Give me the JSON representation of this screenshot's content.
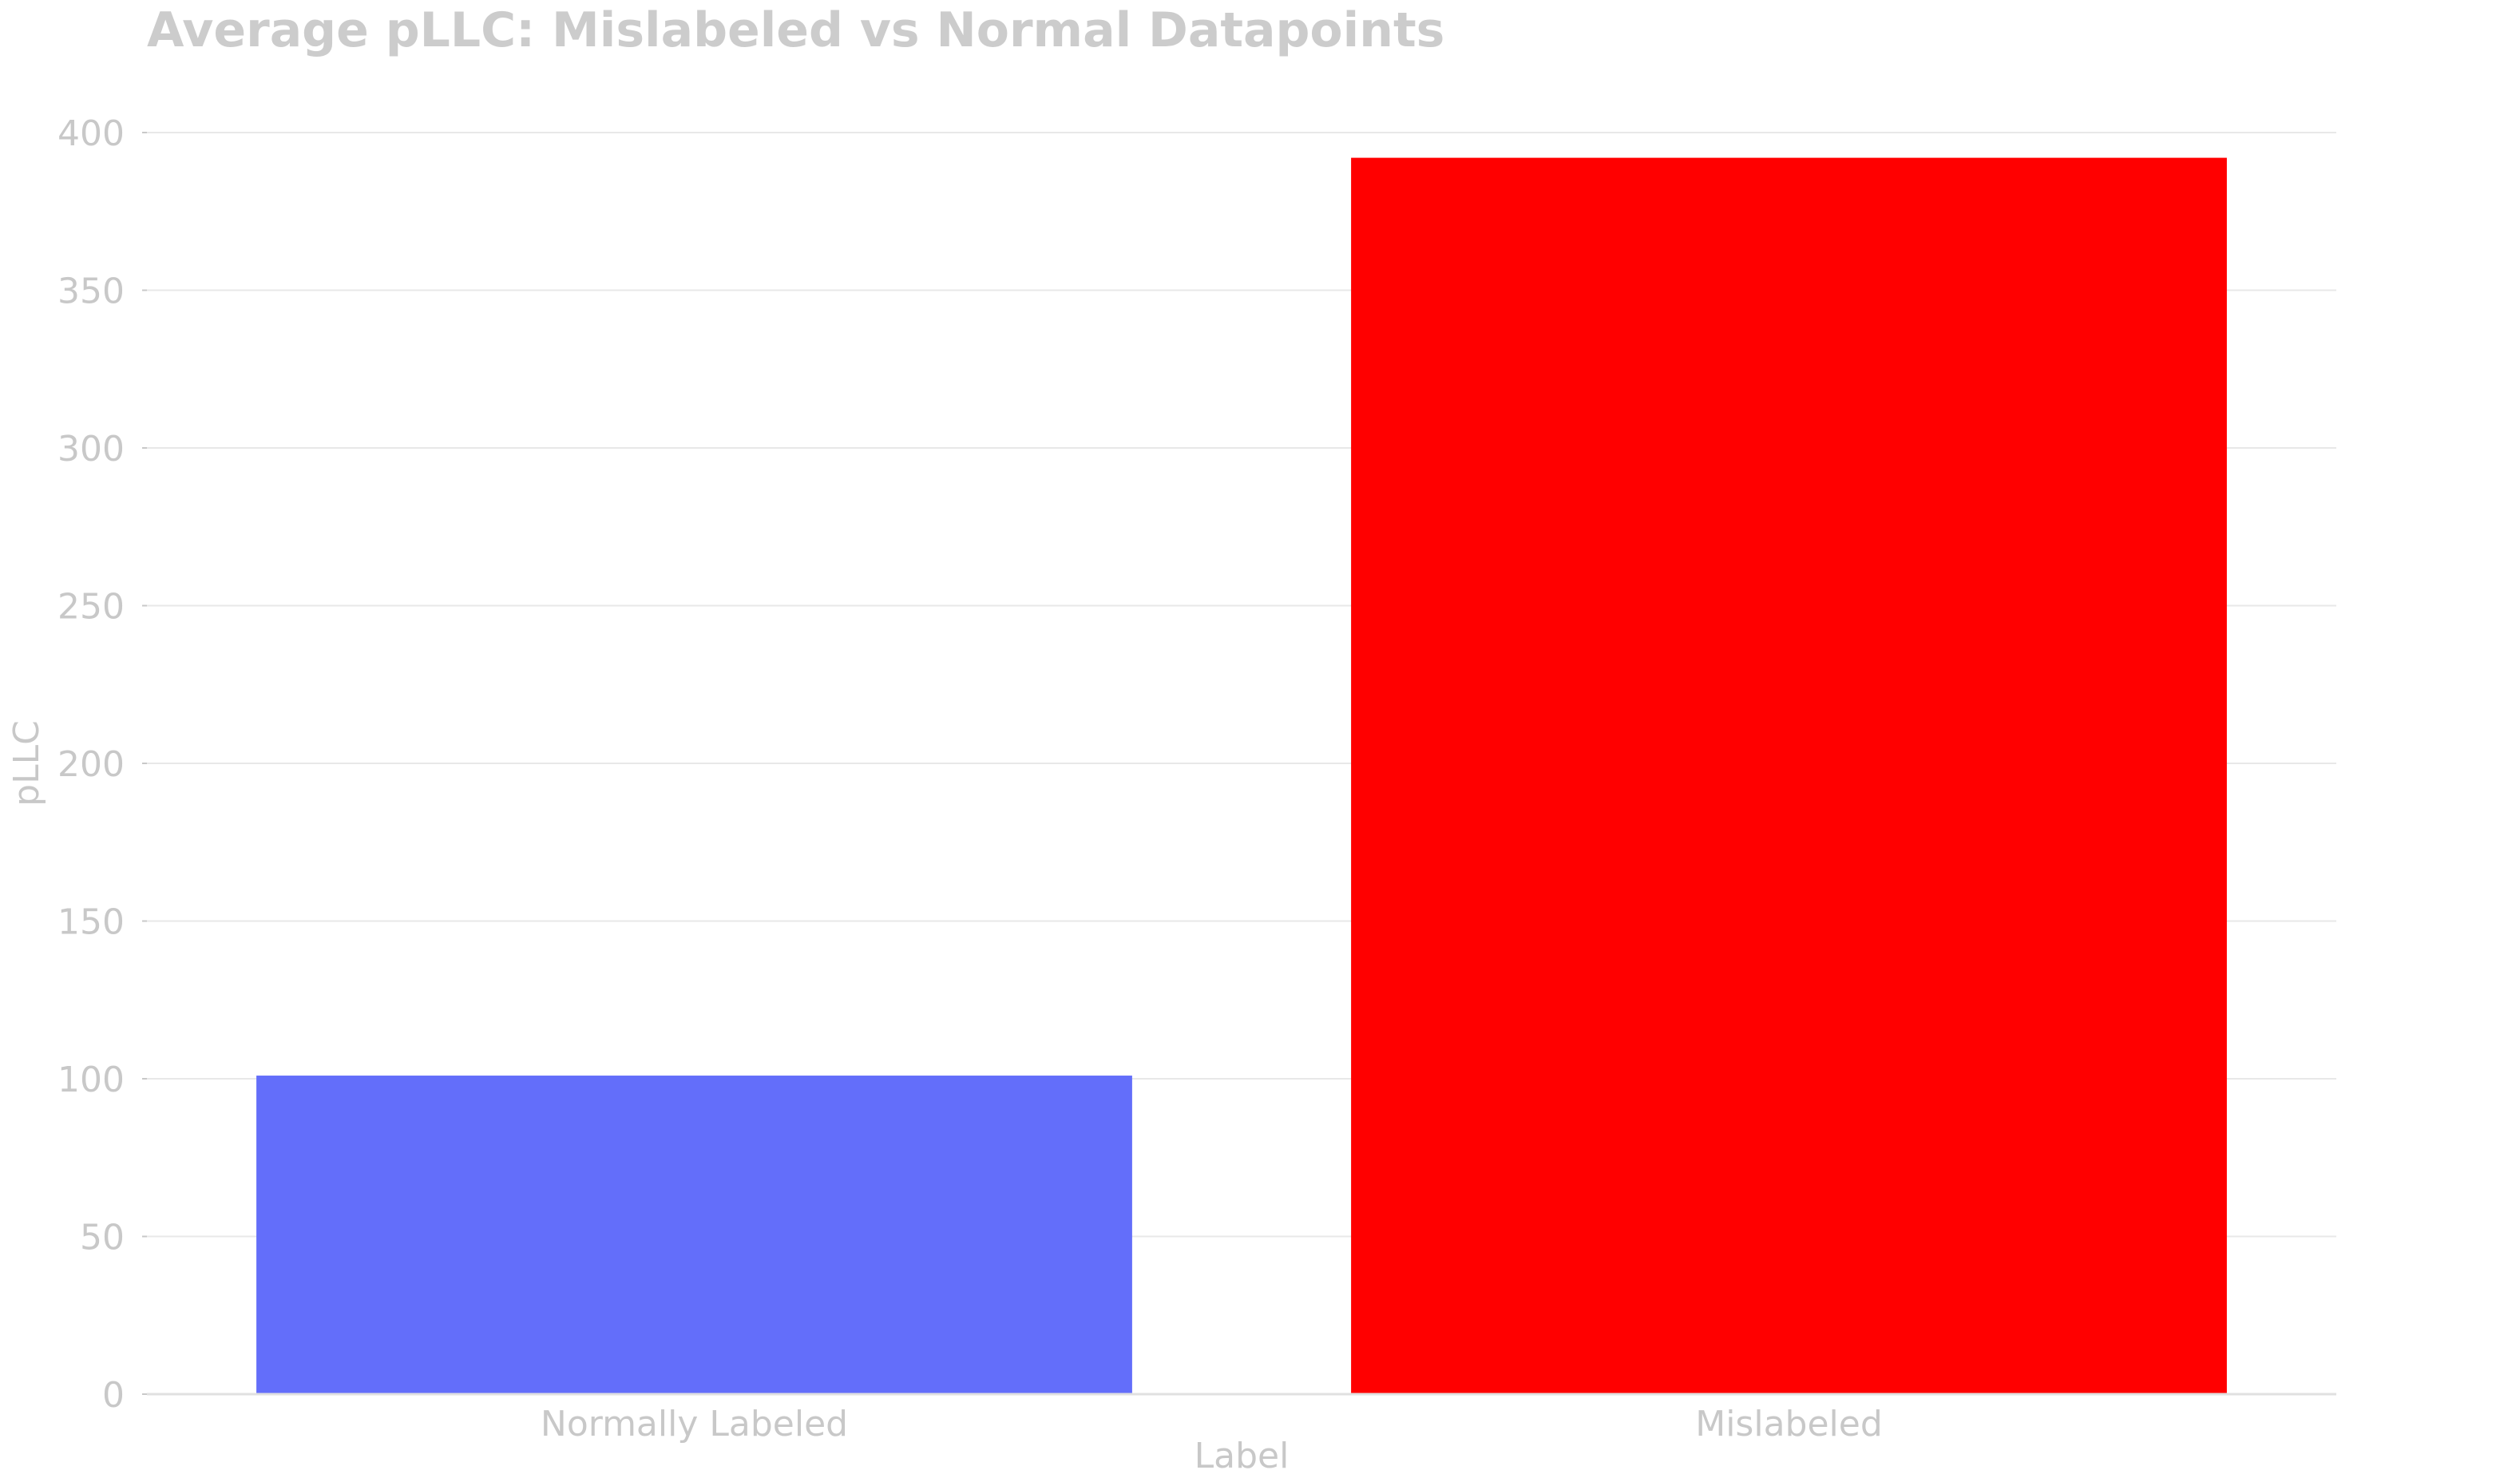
{
  "chart_data": {
    "type": "bar",
    "title": "Average pLLC: Mislabeled vs Normal Datapoints",
    "xlabel": "Label",
    "ylabel": "pLLC",
    "categories": [
      "Normally Labeled",
      "Mislabeled"
    ],
    "values": [
      101,
      392
    ],
    "colors": [
      "#636efa",
      "#ff0000"
    ],
    "ylim": [
      0,
      400
    ],
    "yticks": [
      0,
      50,
      100,
      150,
      200,
      250,
      300,
      350,
      400
    ],
    "grid": true,
    "legend": "none"
  }
}
